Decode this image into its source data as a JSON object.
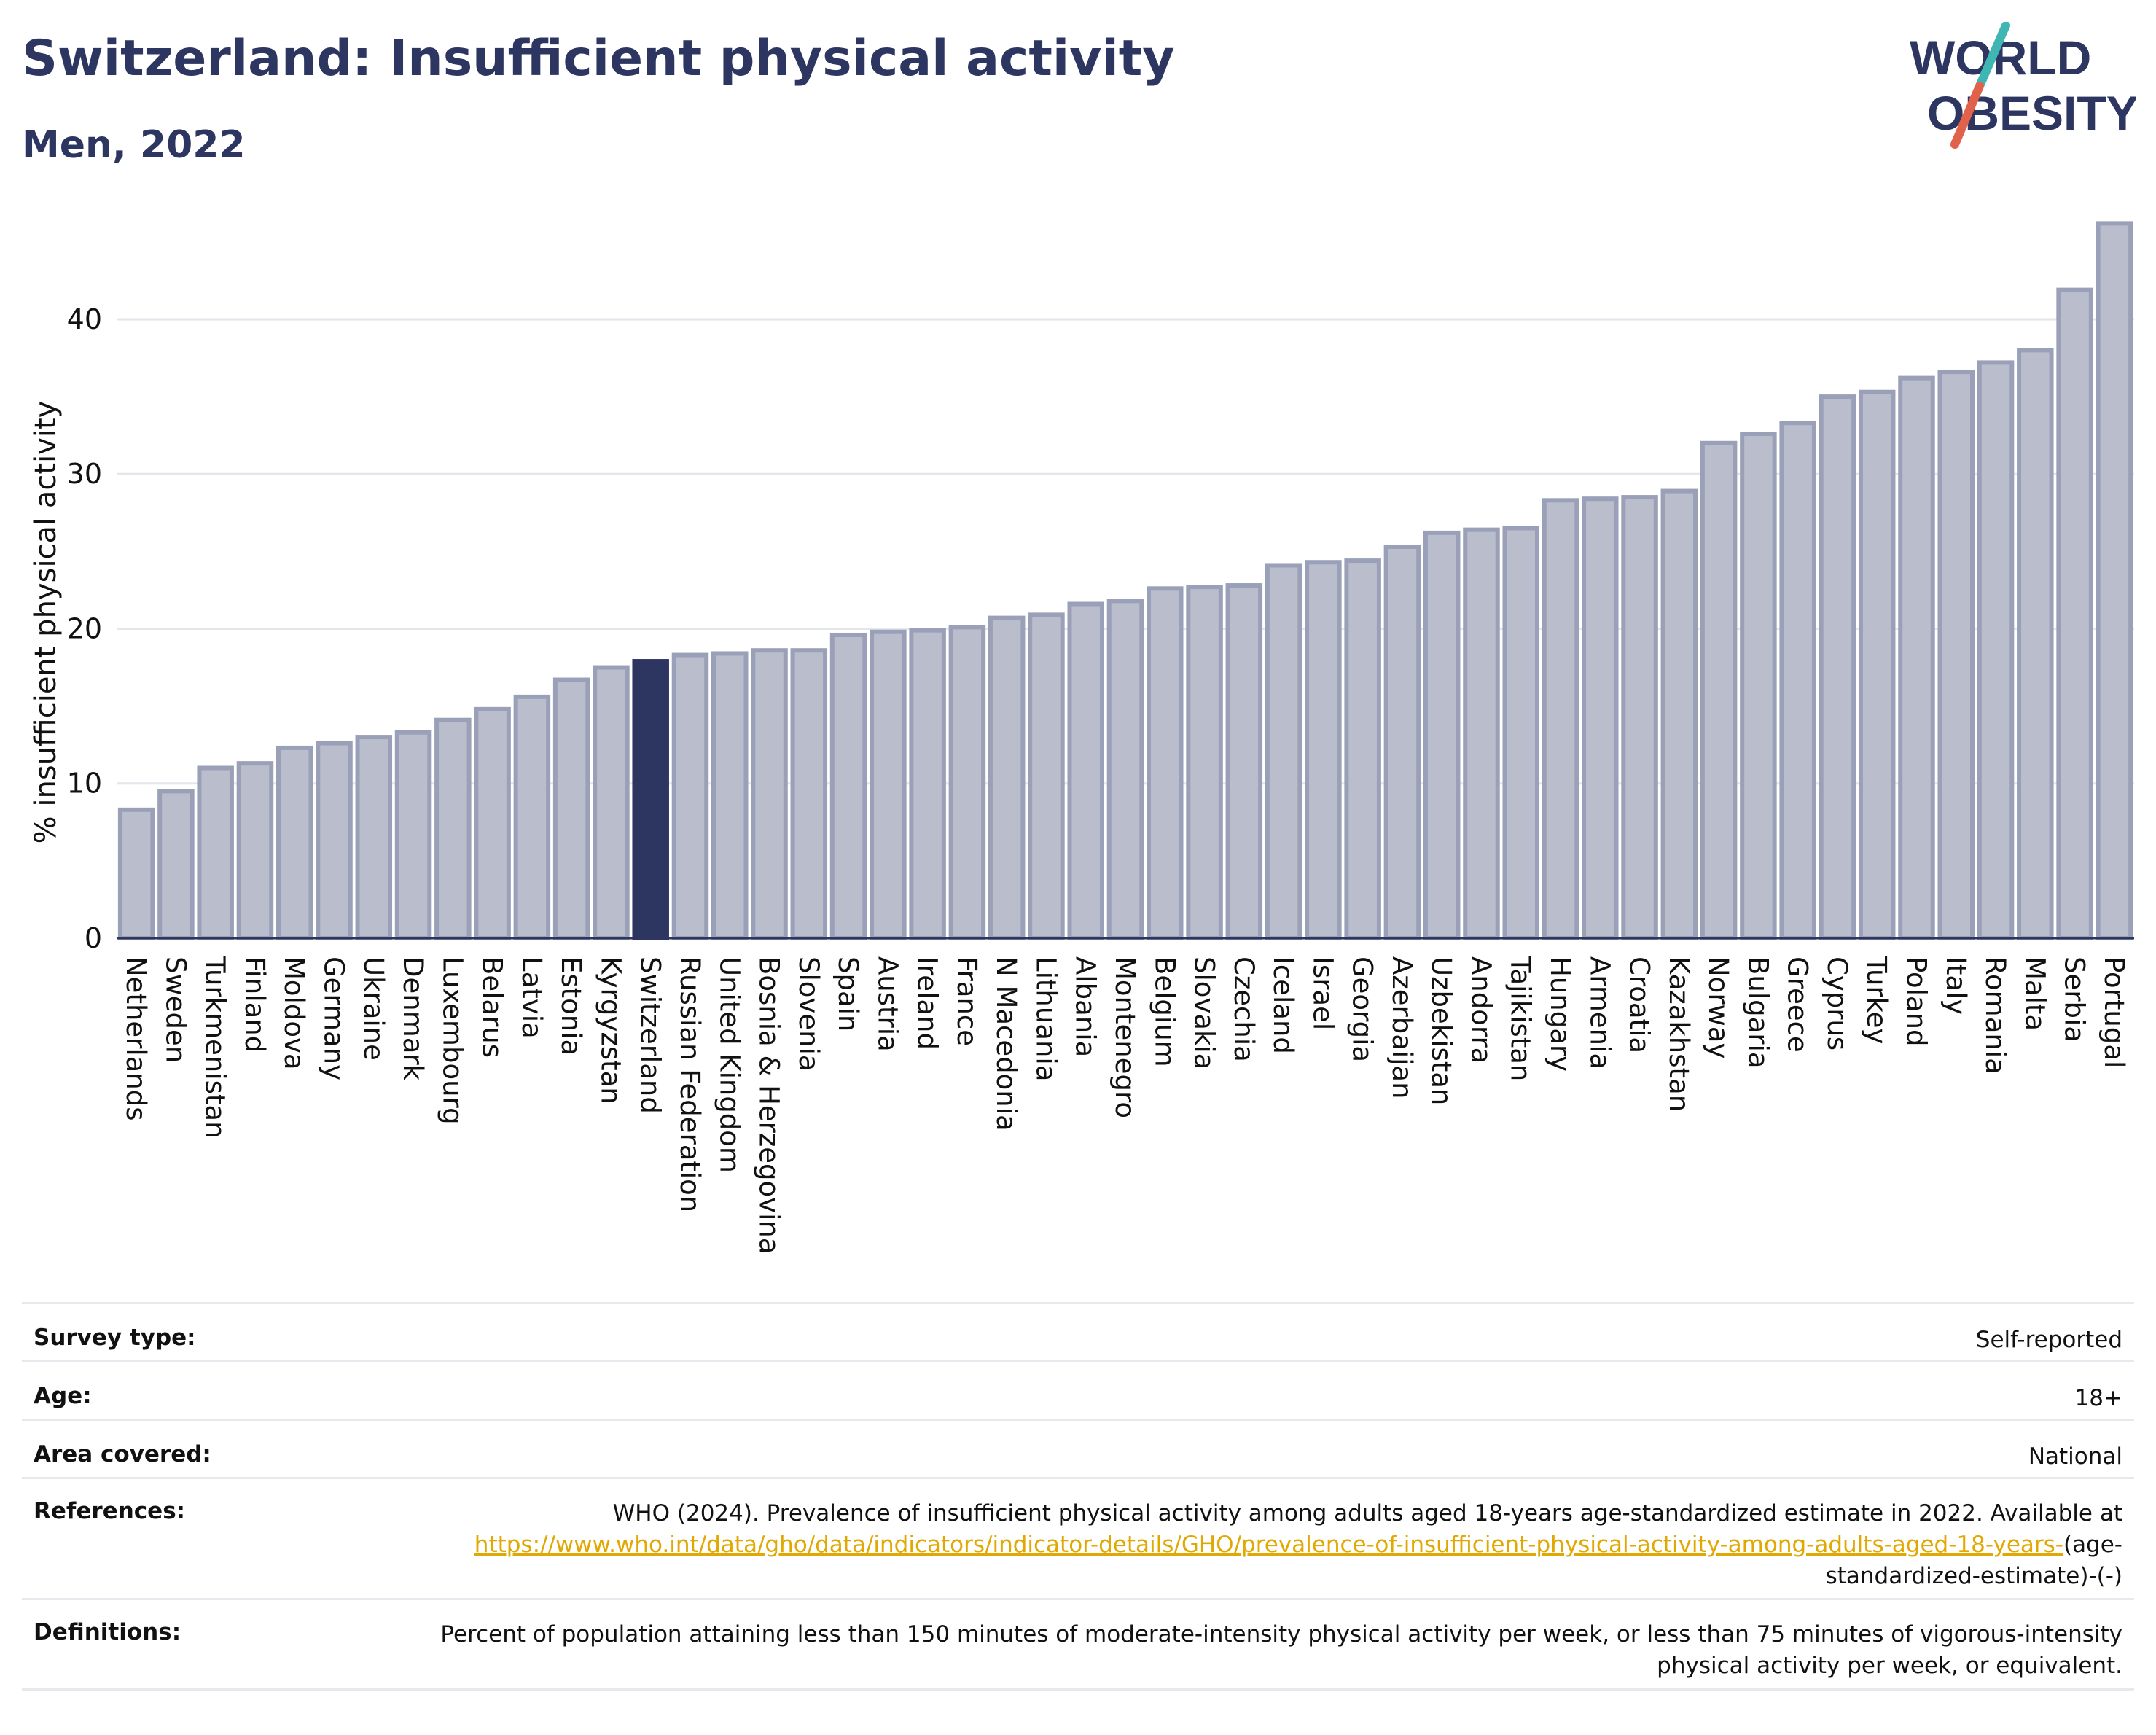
{
  "header": {
    "title": "Switzerland: Insufficient physical activity",
    "subtitle": "Men, 2022"
  },
  "logo": {
    "line1": "WORLD",
    "line2": "OBESITY",
    "colors": {
      "text": "#2d3561",
      "slash_teal": "#3fb6b2",
      "slash_red": "#e0624a"
    }
  },
  "colors": {
    "bar_fill": "#b9bdcc",
    "bar_stroke": "#9aa0b8",
    "highlight": "#2d3561",
    "grid": "#e4e6ec",
    "axis": "#2d3561"
  },
  "chart_data": {
    "type": "bar",
    "title": "Switzerland: Insufficient physical activity",
    "subtitle": "Men, 2022",
    "xlabel": "",
    "ylabel": "% insufficient physical activity",
    "ylim": [
      0,
      46.5
    ],
    "yticks": [
      0,
      10,
      20,
      30,
      40
    ],
    "grid": true,
    "highlight": "Switzerland",
    "categories": [
      "Netherlands",
      "Sweden",
      "Turkmenistan",
      "Finland",
      "Moldova",
      "Germany",
      "Ukraine",
      "Denmark",
      "Luxembourg",
      "Belarus",
      "Latvia",
      "Estonia",
      "Kyrgyzstan",
      "Switzerland",
      "Russian Federation",
      "United Kingdom",
      "Bosnia & Herzegovina",
      "Slovenia",
      "Spain",
      "Austria",
      "Ireland",
      "France",
      "N Macedonia",
      "Lithuania",
      "Albania",
      "Montenegro",
      "Belgium",
      "Slovakia",
      "Czechia",
      "Iceland",
      "Israel",
      "Georgia",
      "Azerbaijan",
      "Uzbekistan",
      "Andorra",
      "Tajikistan",
      "Hungary",
      "Armenia",
      "Croatia",
      "Kazakhstan",
      "Norway",
      "Bulgaria",
      "Greece",
      "Cyprus",
      "Turkey",
      "Poland",
      "Italy",
      "Romania",
      "Malta",
      "Serbia",
      "Portugal"
    ],
    "values": [
      8.3,
      9.5,
      11.0,
      11.3,
      12.3,
      12.6,
      13.0,
      13.3,
      14.1,
      14.8,
      15.6,
      16.7,
      17.5,
      17.9,
      18.3,
      18.4,
      18.6,
      18.6,
      19.6,
      19.8,
      19.9,
      20.1,
      20.7,
      20.9,
      21.6,
      21.8,
      22.6,
      22.7,
      22.8,
      24.1,
      24.3,
      24.4,
      25.3,
      26.2,
      26.4,
      26.5,
      28.3,
      28.4,
      28.5,
      28.9,
      32.0,
      32.6,
      33.3,
      35.0,
      35.3,
      36.2,
      36.6,
      37.2,
      38.0,
      41.9,
      46.2
    ]
  },
  "metadata": {
    "survey_type": {
      "label": "Survey type:",
      "value": "Self-reported"
    },
    "age": {
      "label": "Age:",
      "value": "18+"
    },
    "area": {
      "label": "Area covered:",
      "value": "National"
    },
    "references": {
      "label": "References:",
      "text": "WHO (2024). Prevalence of insufficient physical activity among adults aged 18-years age-standardized estimate in 2022. Available at",
      "link": "https://www.who.int/data/gho/data/indicators/indicator-details/GHO/prevalence-of-insufficient-physical-activity-among-adults-aged-18-years-",
      "suffix": "(age-standardized-estimate)-(-)"
    },
    "definitions": {
      "label": "Definitions:",
      "value": "Percent of population attaining less than 150 minutes of moderate-intensity physical activity per week, or less than 75 minutes of vigorous-intensity physical activity per week, or equivalent."
    }
  }
}
